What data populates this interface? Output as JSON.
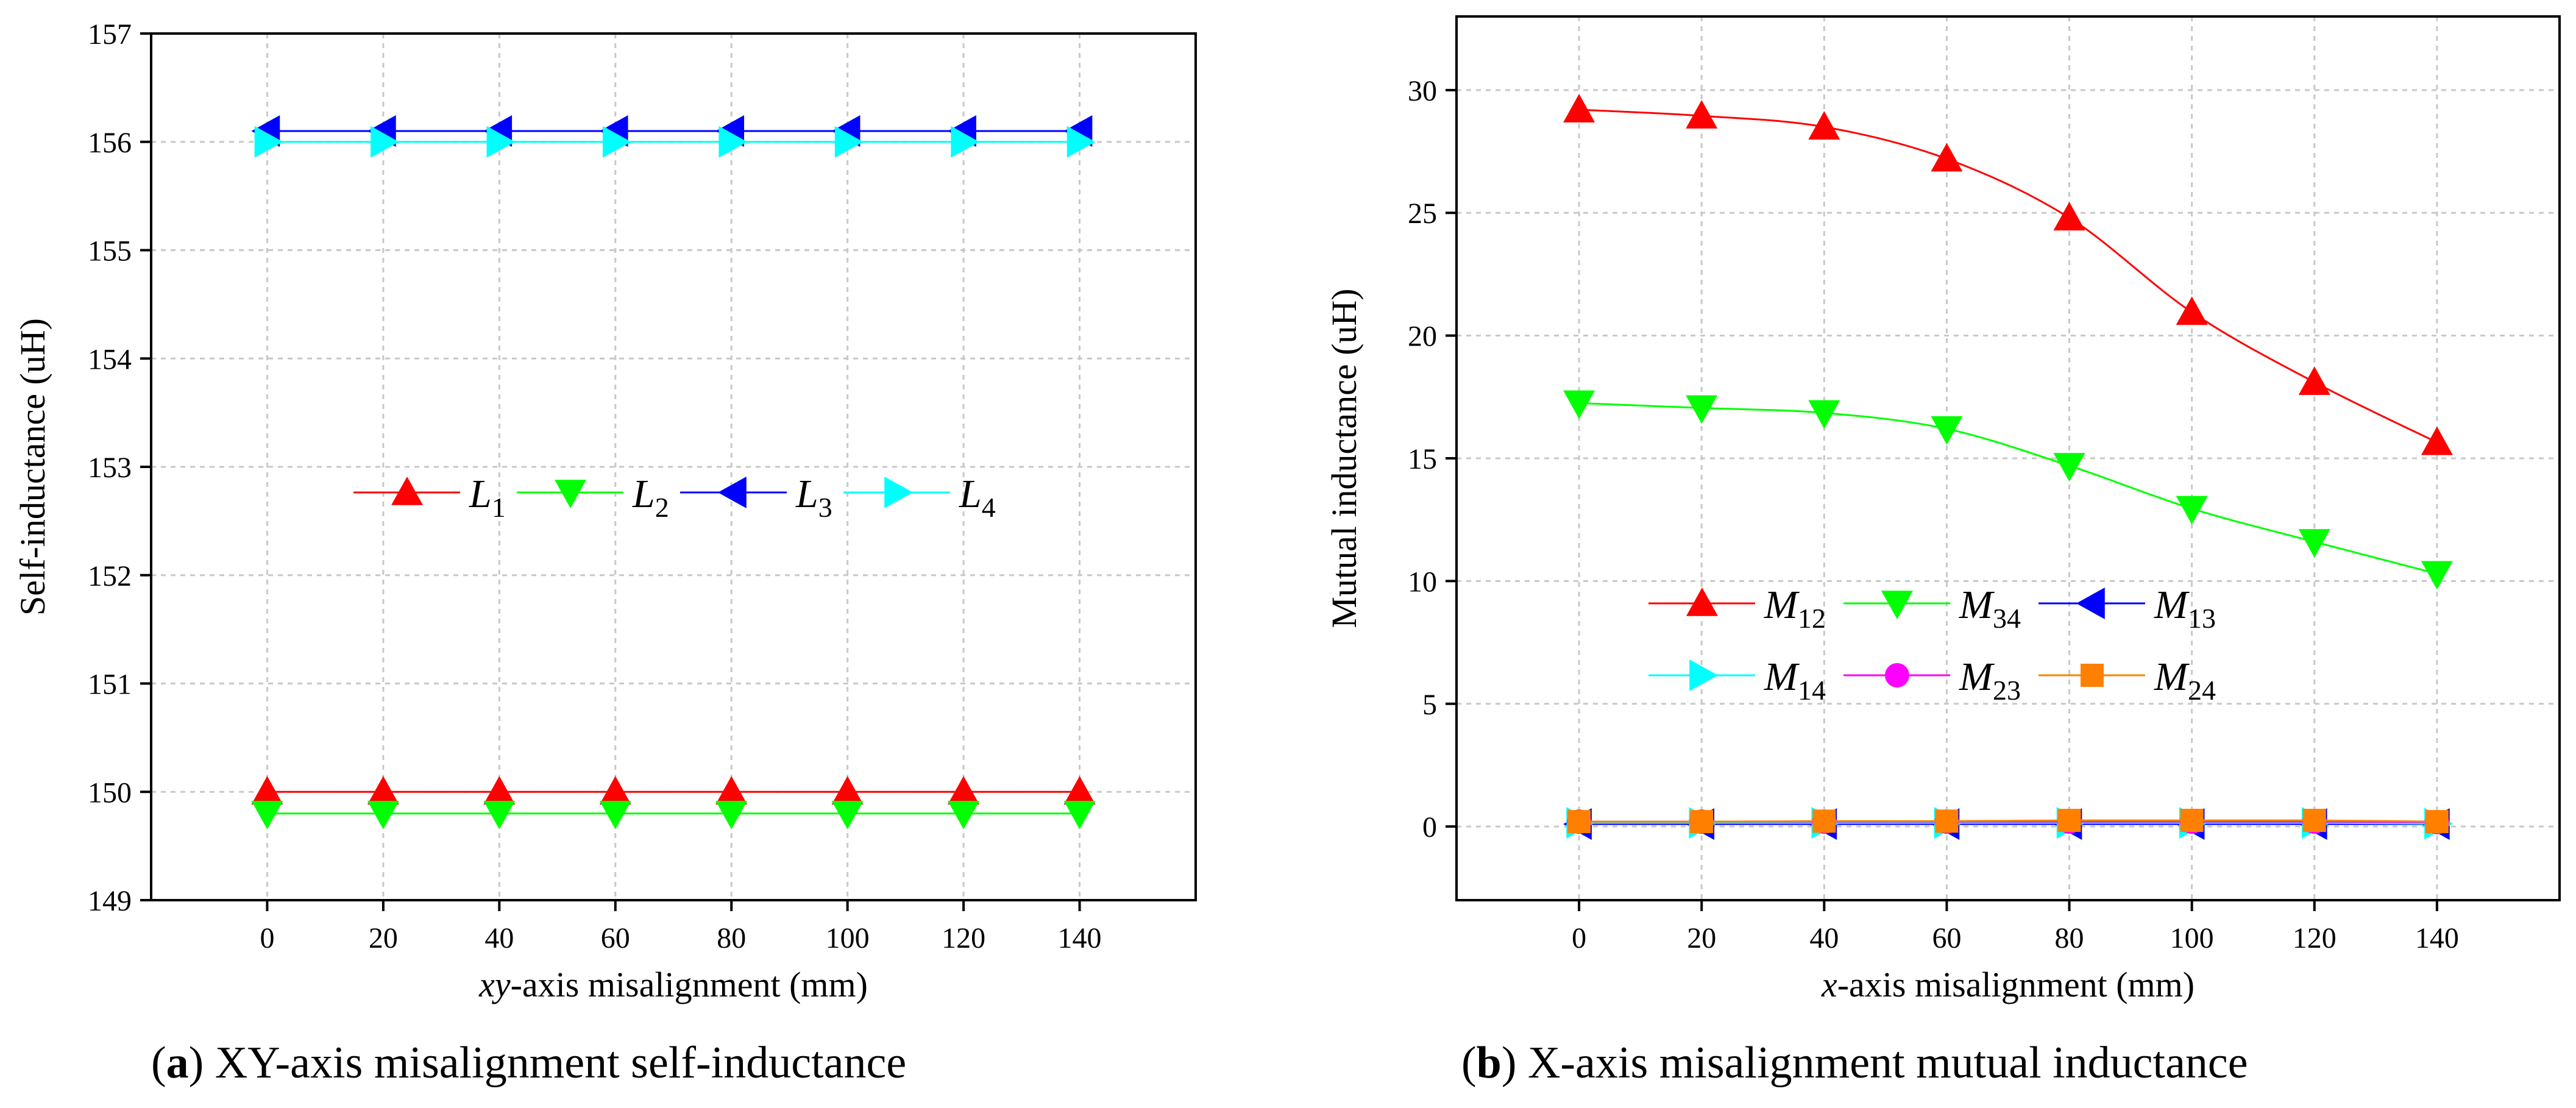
{
  "chart_data": [
    {
      "type": "line",
      "panel_id": "a",
      "title": "",
      "caption_letter": "a",
      "caption_text": "XY-axis misalignment self-inductance",
      "xlabel_italic": "xy",
      "xlabel_rest": "-axis misalignment (mm)",
      "ylabel": "Self-inductance (uH)",
      "xlim": [
        -20,
        160
      ],
      "ylim": [
        149,
        157
      ],
      "xticks": [
        0,
        20,
        40,
        60,
        80,
        100,
        120,
        140
      ],
      "xtick_labels": [
        "0",
        "20",
        "40",
        "60",
        "80",
        "100",
        "120",
        "140"
      ],
      "yticks": [
        149,
        150,
        151,
        152,
        153,
        154,
        155,
        156,
        157
      ],
      "ytick_labels": [
        "149",
        "150",
        "151",
        "152",
        "153",
        "154",
        "155",
        "156",
        "157"
      ],
      "grid": true,
      "legend_placement": "center",
      "x": [
        0,
        20,
        40,
        60,
        80,
        100,
        120,
        140
      ],
      "series": [
        {
          "name": "L1",
          "base": "L",
          "sub": "1",
          "color": "#ff0000",
          "marker": "triangle-up",
          "values": [
            150.0,
            150.0,
            150.0,
            150.0,
            150.0,
            150.0,
            150.0,
            150.0
          ]
        },
        {
          "name": "L2",
          "base": "L",
          "sub": "2",
          "color": "#00ff00",
          "marker": "triangle-down",
          "values": [
            149.8,
            149.8,
            149.8,
            149.8,
            149.8,
            149.8,
            149.8,
            149.8
          ]
        },
        {
          "name": "L3",
          "base": "L",
          "sub": "3",
          "color": "#0000ff",
          "marker": "triangle-left",
          "values": [
            156.1,
            156.1,
            156.1,
            156.1,
            156.1,
            156.1,
            156.1,
            156.1
          ]
        },
        {
          "name": "L4",
          "base": "L",
          "sub": "4",
          "color": "#00ffff",
          "marker": "triangle-right",
          "values": [
            156.0,
            156.0,
            156.0,
            156.0,
            156.0,
            156.0,
            156.0,
            156.0
          ]
        }
      ]
    },
    {
      "type": "line",
      "panel_id": "b",
      "title": "",
      "caption_letter": "b",
      "caption_text": "X-axis misalignment mutual inductance",
      "xlabel_italic": "x",
      "xlabel_rest": "-axis misalignment (mm)",
      "ylabel": "Mutual inductance (uH)",
      "xlim": [
        -20,
        160
      ],
      "ylim": [
        -3,
        33
      ],
      "xticks": [
        0,
        20,
        40,
        60,
        80,
        100,
        120,
        140
      ],
      "xtick_labels": [
        "0",
        "20",
        "40",
        "60",
        "80",
        "100",
        "120",
        "140"
      ],
      "yticks": [
        0,
        5,
        10,
        15,
        20,
        25,
        30
      ],
      "ytick_labels": [
        "0",
        "5",
        "10",
        "15",
        "20",
        "25",
        "30"
      ],
      "grid": true,
      "legend_placement": "center-left",
      "x": [
        0,
        20,
        40,
        60,
        80,
        100,
        120,
        140
      ],
      "series": [
        {
          "name": "M12",
          "base": "M",
          "sub": "12",
          "color": "#ff0000",
          "marker": "triangle-up",
          "values": [
            29.2,
            28.95,
            28.5,
            27.2,
            24.8,
            20.95,
            18.1,
            15.65
          ]
        },
        {
          "name": "M34",
          "base": "M",
          "sub": "34",
          "color": "#00ff00",
          "marker": "triangle-down",
          "values": [
            17.25,
            17.05,
            16.85,
            16.2,
            14.7,
            12.95,
            11.6,
            10.3
          ]
        },
        {
          "name": "M13",
          "base": "M",
          "sub": "13",
          "color": "#0000ff",
          "marker": "triangle-left",
          "values": [
            0.1,
            0.1,
            0.1,
            0.1,
            0.1,
            0.1,
            0.1,
            0.1
          ]
        },
        {
          "name": "M14",
          "base": "M",
          "sub": "14",
          "color": "#00ffff",
          "marker": "triangle-right",
          "values": [
            0.15,
            0.15,
            0.15,
            0.15,
            0.15,
            0.15,
            0.15,
            0.12
          ]
        },
        {
          "name": "M23",
          "base": "M",
          "sub": "23",
          "color": "#ff00ff",
          "marker": "circle",
          "values": [
            0.2,
            0.2,
            0.2,
            0.2,
            0.2,
            0.2,
            0.2,
            0.18
          ]
        },
        {
          "name": "M24",
          "base": "M",
          "sub": "24",
          "color": "#ff8000",
          "marker": "square",
          "values": [
            0.2,
            0.2,
            0.22,
            0.22,
            0.25,
            0.25,
            0.25,
            0.2
          ]
        }
      ]
    }
  ]
}
